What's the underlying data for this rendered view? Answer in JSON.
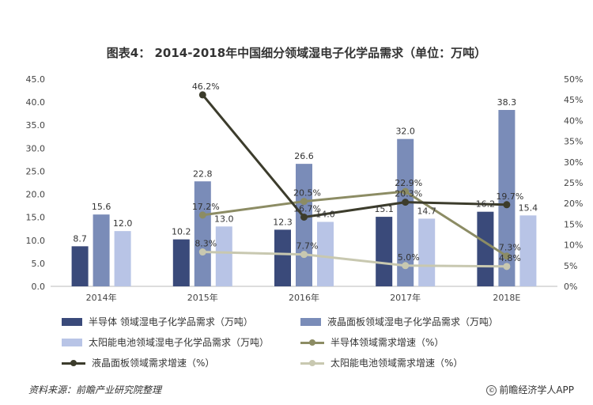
{
  "title": "图表4： 2014-2018年中国细分领域湿电子化学品需求（单位：万吨）",
  "chart_data": {
    "type": "bar",
    "categories": [
      "2014年",
      "2015年",
      "2016年",
      "2017年",
      "2018E"
    ],
    "y_left": {
      "min": 0,
      "max": 45,
      "step": 5,
      "ticks": [
        "0.0",
        "5.0",
        "10.0",
        "15.0",
        "20.0",
        "25.0",
        "30.0",
        "35.0",
        "40.0",
        "45.0"
      ]
    },
    "y_right": {
      "min": 0,
      "max": 50,
      "step": 5,
      "ticks": [
        "0%",
        "5%",
        "10%",
        "15%",
        "20%",
        "25%",
        "30%",
        "35%",
        "40%",
        "45%",
        "50%"
      ]
    },
    "bar_series": [
      {
        "name": "半导体 领域湿电子化学品需求（万吨）",
        "color": "#3a4a7a",
        "values": [
          8.7,
          10.2,
          12.3,
          15.1,
          16.2
        ],
        "labels": [
          "8.7",
          "10.2",
          "12.3",
          "15.1",
          "16.2"
        ]
      },
      {
        "name": "液晶面板领域湿电子化学品需求（万吨）",
        "color": "#7a8cb8",
        "values": [
          15.6,
          22.8,
          26.6,
          32.0,
          38.3
        ],
        "labels": [
          "15.6",
          "22.8",
          "26.6",
          "32.0",
          "38.3"
        ]
      },
      {
        "name": "太阳能电池领域湿电子化学品需求（万吨）",
        "color": "#b8c4e6",
        "values": [
          12.0,
          13.0,
          14.0,
          14.7,
          15.4
        ],
        "labels": [
          "12.0",
          "13.0",
          "14.0",
          "14.7",
          "15.4"
        ]
      }
    ],
    "line_series": [
      {
        "name": "半导体领域需求增速（%）",
        "color": "#8c8c64",
        "points": [
          [
            1,
            17.2
          ],
          [
            2,
            20.5
          ],
          [
            3,
            22.9
          ],
          [
            4,
            7.3
          ]
        ],
        "labels": [
          "17.2%",
          "20.5%",
          "22.9%",
          "7.3%"
        ]
      },
      {
        "name": "液晶面板领域需求增速（%）",
        "color": "#3c3c2c",
        "points": [
          [
            1,
            46.2
          ],
          [
            2,
            16.7
          ],
          [
            3,
            20.3
          ],
          [
            4,
            19.7
          ]
        ],
        "labels": [
          "46.2%",
          "16.7%",
          "20.3%",
          "19.7%"
        ]
      },
      {
        "name": "太阳能电池领域需求增速（%）",
        "color": "#c8c8b0",
        "points": [
          [
            1,
            8.3
          ],
          [
            2,
            7.7
          ],
          [
            3,
            5.0
          ],
          [
            4,
            4.8
          ]
        ],
        "labels": [
          "8.3%",
          "7.7%",
          "5.0%",
          "4.8%"
        ]
      }
    ],
    "grid": false,
    "legend_position": "bottom"
  },
  "footer": {
    "source": "资料来源：前瞻产业研究院整理",
    "brand_icon": "copyright-icon",
    "brand_icon_glyph": "©",
    "brand": "前瞻经济学人APP"
  }
}
